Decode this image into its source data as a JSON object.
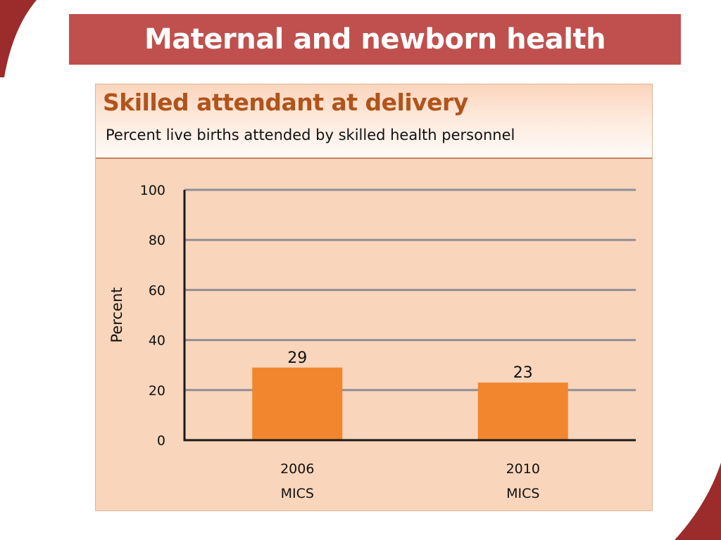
{
  "slide": {
    "title": "Maternal and newborn health"
  },
  "colors": {
    "banner": "#c0504d",
    "card_background": "#f9d5bb",
    "card_title": "#b1541b",
    "bar": "#f2862e",
    "grid": "#8e8e98",
    "axis": "#1a1a1a"
  },
  "chart_data": {
    "type": "bar",
    "title": "Skilled attendant at delivery",
    "subtitle": "Percent live births attended by skilled health personnel",
    "xlabel": "",
    "ylabel": "Percent",
    "categories": [
      [
        "2006",
        "MICS"
      ],
      [
        "2010",
        "MICS"
      ]
    ],
    "values": [
      29,
      23
    ],
    "ylim": [
      0,
      100
    ],
    "yticks": [
      0,
      20,
      40,
      60,
      80,
      100
    ],
    "grid": true,
    "data_labels": [
      "29",
      "23"
    ]
  }
}
